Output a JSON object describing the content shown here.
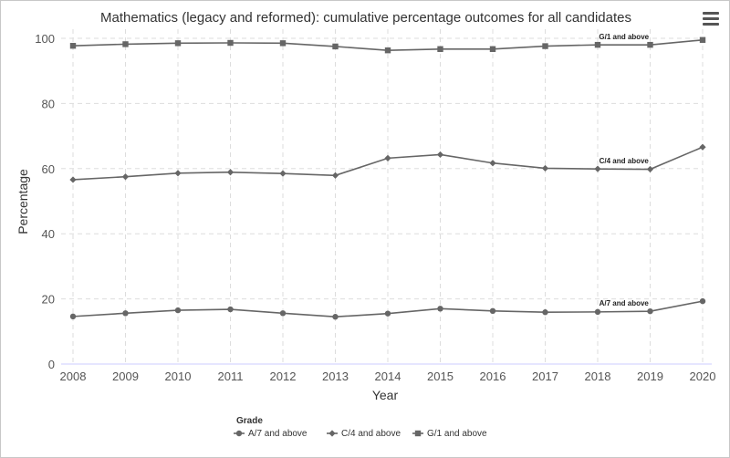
{
  "chart_data": {
    "type": "line",
    "title": "Mathematics (legacy and reformed): cumulative percentage outcomes for all candidates",
    "xlabel": "Year",
    "ylabel": "Percentage",
    "categories": [
      "2008",
      "2009",
      "2010",
      "2011",
      "2012",
      "2013",
      "2014",
      "2015",
      "2016",
      "2017",
      "2018",
      "2019",
      "2020"
    ],
    "y_ticks": [
      "0",
      "20",
      "40",
      "60",
      "80",
      "100"
    ],
    "ylim": [
      0,
      100
    ],
    "grid": true,
    "legend_title": "Grade",
    "legend_position": "bottom",
    "series": [
      {
        "name": "A/7 and above",
        "label": "A/7 and above",
        "marker": "circle",
        "color": "#666666",
        "values": [
          14.6,
          15.6,
          16.5,
          16.8,
          15.6,
          14.5,
          15.5,
          17.0,
          16.3,
          15.9,
          16.0,
          16.2,
          19.3
        ]
      },
      {
        "name": "C/4 and above",
        "label": "C/4 and above",
        "marker": "diamond",
        "color": "#666666",
        "values": [
          56.6,
          57.5,
          58.6,
          58.9,
          58.5,
          57.9,
          63.2,
          64.3,
          61.7,
          60.1,
          59.9,
          59.8,
          66.6
        ]
      },
      {
        "name": "G/1 and above",
        "label": "G/1 and above",
        "marker": "square",
        "color": "#666666",
        "values": [
          97.7,
          98.2,
          98.5,
          98.6,
          98.5,
          97.5,
          96.3,
          96.7,
          96.7,
          97.6,
          98.0,
          98.0,
          99.5
        ]
      }
    ]
  },
  "ui": {
    "menu_icon": "hamburger-menu-icon"
  }
}
